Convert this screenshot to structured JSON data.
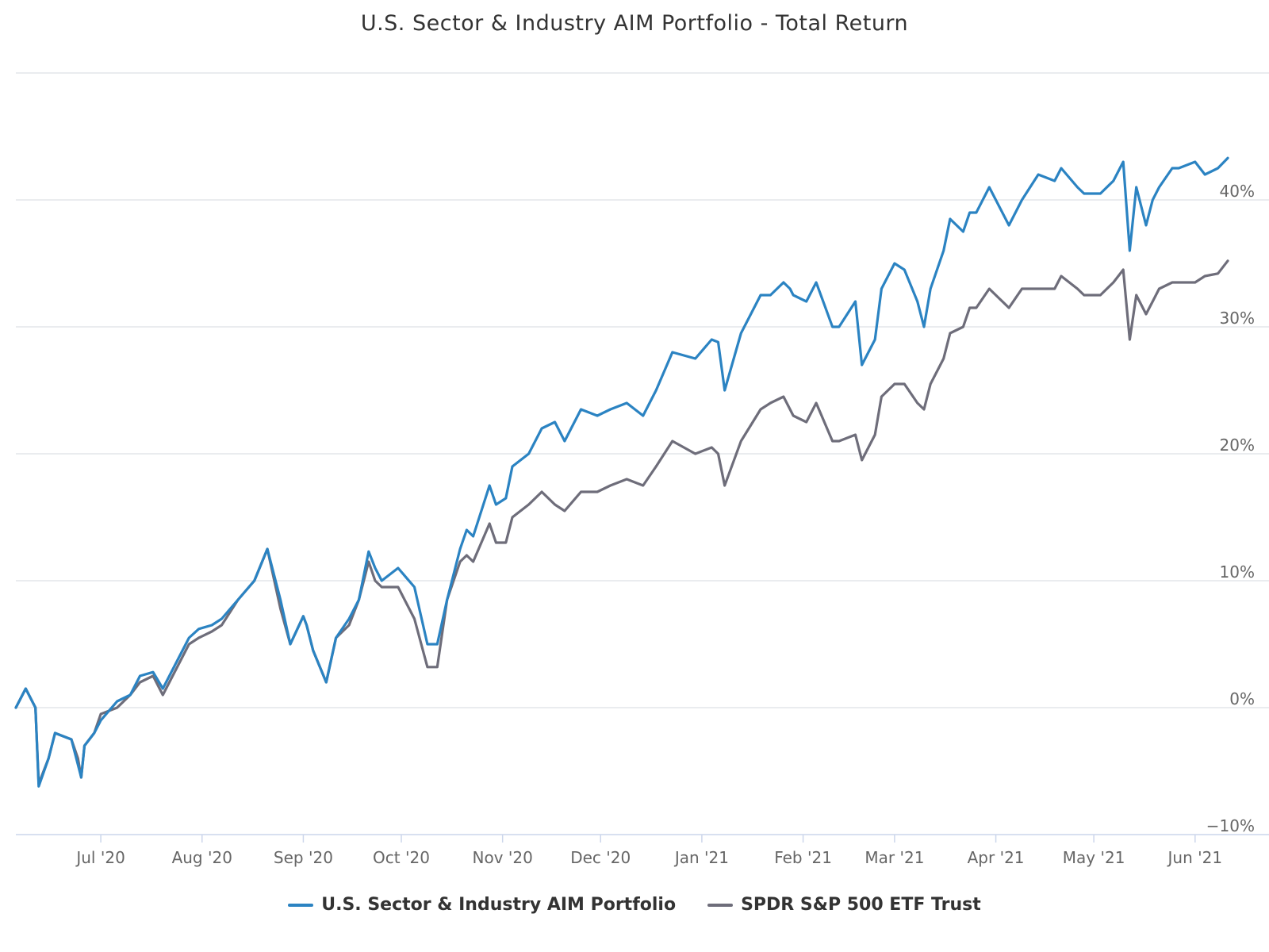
{
  "chart_data": {
    "type": "line",
    "title": "U.S. Sector & Industry AIM Portfolio - Total Return",
    "xlabel": "",
    "ylabel": "",
    "ylim": [
      -10,
      50
    ],
    "y_ticks": [
      "−10%",
      "0%",
      "10%",
      "20%",
      "30%",
      "40%"
    ],
    "y_tick_values": [
      -10,
      0,
      10,
      20,
      30,
      40
    ],
    "x_ticks": [
      "Jul '20",
      "Aug '20",
      "Sep '20",
      "Oct '20",
      "Nov '20",
      "Dec '20",
      "Jan '21",
      "Feb '21",
      "Mar '21",
      "Apr '21",
      "May '21",
      "Jun '21"
    ],
    "x_tick_dates": [
      "2020-07-01",
      "2020-08-01",
      "2020-09-01",
      "2020-10-01",
      "2020-11-01",
      "2020-12-01",
      "2021-01-01",
      "2021-02-01",
      "2021-03-01",
      "2021-04-01",
      "2021-05-01",
      "2021-06-01"
    ],
    "x_range": [
      "2020-06-05",
      "2021-06-11"
    ],
    "grid": true,
    "y_axis_side": "right",
    "legend_position": "bottom",
    "series": [
      {
        "name": "U.S. Sector & Industry AIM Portfolio",
        "color": "#2b83c2",
        "x": [
          "2020-06-05",
          "2020-06-08",
          "2020-06-11",
          "2020-06-12",
          "2020-06-15",
          "2020-06-17",
          "2020-06-19",
          "2020-06-22",
          "2020-06-24",
          "2020-06-25",
          "2020-06-26",
          "2020-06-29",
          "2020-07-01",
          "2020-07-06",
          "2020-07-10",
          "2020-07-13",
          "2020-07-17",
          "2020-07-20",
          "2020-07-24",
          "2020-07-28",
          "2020-07-31",
          "2020-08-04",
          "2020-08-07",
          "2020-08-12",
          "2020-08-17",
          "2020-08-21",
          "2020-08-25",
          "2020-08-28",
          "2020-09-01",
          "2020-09-02",
          "2020-09-04",
          "2020-09-08",
          "2020-09-11",
          "2020-09-15",
          "2020-09-18",
          "2020-09-21",
          "2020-09-23",
          "2020-09-25",
          "2020-09-30",
          "2020-10-05",
          "2020-10-09",
          "2020-10-12",
          "2020-10-15",
          "2020-10-19",
          "2020-10-21",
          "2020-10-23",
          "2020-10-28",
          "2020-10-30",
          "2020-11-02",
          "2020-11-04",
          "2020-11-09",
          "2020-11-13",
          "2020-11-17",
          "2020-11-20",
          "2020-11-25",
          "2020-11-30",
          "2020-12-04",
          "2020-12-09",
          "2020-12-14",
          "2020-12-18",
          "2020-12-23",
          "2020-12-30",
          "2021-01-04",
          "2021-01-06",
          "2021-01-08",
          "2021-01-13",
          "2021-01-19",
          "2021-01-22",
          "2021-01-26",
          "2021-01-28",
          "2021-01-29",
          "2021-02-02",
          "2021-02-05",
          "2021-02-10",
          "2021-02-12",
          "2021-02-17",
          "2021-02-19",
          "2021-02-23",
          "2021-02-25",
          "2021-03-01",
          "2021-03-04",
          "2021-03-08",
          "2021-03-10",
          "2021-03-12",
          "2021-03-16",
          "2021-03-18",
          "2021-03-22",
          "2021-03-24",
          "2021-03-26",
          "2021-03-30",
          "2021-04-05",
          "2021-04-09",
          "2021-04-14",
          "2021-04-19",
          "2021-04-21",
          "2021-04-26",
          "2021-04-28",
          "2021-05-03",
          "2021-05-07",
          "2021-05-10",
          "2021-05-12",
          "2021-05-14",
          "2021-05-17",
          "2021-05-19",
          "2021-05-21",
          "2021-05-25",
          "2021-05-27",
          "2021-06-01",
          "2021-06-04",
          "2021-06-08",
          "2021-06-11"
        ],
        "y": [
          0.0,
          1.5,
          0.0,
          -6.2,
          -4.0,
          -2.0,
          -2.2,
          -2.5,
          -4.5,
          -5.5,
          -3.0,
          -2.0,
          -1.0,
          0.5,
          1.0,
          2.5,
          2.8,
          1.5,
          3.5,
          5.5,
          6.2,
          6.5,
          7.0,
          8.5,
          10.0,
          12.5,
          8.5,
          5.0,
          7.2,
          6.5,
          4.5,
          2.0,
          5.5,
          7.0,
          8.5,
          12.3,
          11.0,
          10.0,
          11.0,
          9.5,
          5.0,
          5.0,
          8.5,
          12.5,
          14.0,
          13.5,
          17.5,
          16.0,
          16.5,
          19.0,
          20.0,
          22.0,
          22.5,
          21.0,
          23.5,
          23.0,
          23.5,
          24.0,
          23.0,
          25.0,
          28.0,
          27.5,
          29.0,
          28.8,
          25.0,
          29.5,
          32.5,
          32.5,
          33.5,
          33.0,
          32.5,
          32.0,
          33.5,
          30.0,
          30.0,
          32.0,
          27.0,
          29.0,
          33.0,
          35.0,
          34.5,
          32.0,
          30.0,
          33.0,
          36.0,
          38.5,
          37.5,
          39.0,
          39.0,
          41.0,
          38.0,
          40.0,
          42.0,
          41.5,
          42.5,
          41.0,
          40.5,
          40.5,
          41.5,
          43.0,
          36.0,
          41.0,
          38.0,
          40.0,
          41.0,
          42.5,
          42.5,
          43.0,
          42.0,
          42.5,
          43.3
        ]
      },
      {
        "name": "SPDR S&P 500 ETF Trust",
        "color": "#6e6d7a",
        "x": [
          "2020-06-05",
          "2020-06-08",
          "2020-06-11",
          "2020-06-12",
          "2020-06-15",
          "2020-06-17",
          "2020-06-19",
          "2020-06-22",
          "2020-06-24",
          "2020-06-25",
          "2020-06-26",
          "2020-06-29",
          "2020-07-01",
          "2020-07-06",
          "2020-07-10",
          "2020-07-13",
          "2020-07-17",
          "2020-07-20",
          "2020-07-24",
          "2020-07-28",
          "2020-07-31",
          "2020-08-04",
          "2020-08-07",
          "2020-08-12",
          "2020-08-17",
          "2020-08-21",
          "2020-08-25",
          "2020-08-28",
          "2020-09-01",
          "2020-09-02",
          "2020-09-04",
          "2020-09-08",
          "2020-09-11",
          "2020-09-15",
          "2020-09-18",
          "2020-09-21",
          "2020-09-23",
          "2020-09-25",
          "2020-09-30",
          "2020-10-05",
          "2020-10-09",
          "2020-10-12",
          "2020-10-15",
          "2020-10-19",
          "2020-10-21",
          "2020-10-23",
          "2020-10-28",
          "2020-10-30",
          "2020-11-02",
          "2020-11-04",
          "2020-11-09",
          "2020-11-13",
          "2020-11-17",
          "2020-11-20",
          "2020-11-25",
          "2020-11-30",
          "2020-12-04",
          "2020-12-09",
          "2020-12-14",
          "2020-12-18",
          "2020-12-23",
          "2020-12-30",
          "2021-01-04",
          "2021-01-06",
          "2021-01-08",
          "2021-01-13",
          "2021-01-19",
          "2021-01-22",
          "2021-01-26",
          "2021-01-28",
          "2021-01-29",
          "2021-02-02",
          "2021-02-05",
          "2021-02-10",
          "2021-02-12",
          "2021-02-17",
          "2021-02-19",
          "2021-02-23",
          "2021-02-25",
          "2021-03-01",
          "2021-03-04",
          "2021-03-08",
          "2021-03-10",
          "2021-03-12",
          "2021-03-16",
          "2021-03-18",
          "2021-03-22",
          "2021-03-24",
          "2021-03-26",
          "2021-03-30",
          "2021-04-05",
          "2021-04-09",
          "2021-04-14",
          "2021-04-19",
          "2021-04-21",
          "2021-04-26",
          "2021-04-28",
          "2021-05-03",
          "2021-05-07",
          "2021-05-10",
          "2021-05-12",
          "2021-05-14",
          "2021-05-17",
          "2021-05-19",
          "2021-05-21",
          "2021-05-25",
          "2021-05-27",
          "2021-06-01",
          "2021-06-04",
          "2021-06-08",
          "2021-06-11"
        ],
        "y": [
          0.0,
          1.5,
          0.0,
          -6.0,
          -4.0,
          -2.0,
          -2.2,
          -2.5,
          -4.0,
          -5.5,
          -3.0,
          -2.0,
          -0.5,
          0.0,
          1.0,
          2.0,
          2.5,
          1.0,
          3.0,
          5.0,
          5.5,
          6.0,
          6.5,
          8.5,
          10.0,
          12.5,
          7.8,
          5.0,
          7.2,
          6.5,
          4.5,
          2.0,
          5.5,
          6.5,
          8.5,
          11.5,
          10.0,
          9.5,
          9.5,
          7.0,
          3.2,
          3.2,
          8.5,
          11.5,
          12.0,
          11.5,
          14.5,
          13.0,
          13.0,
          15.0,
          16.0,
          17.0,
          16.0,
          15.5,
          17.0,
          17.0,
          17.5,
          18.0,
          17.5,
          19.0,
          21.0,
          20.0,
          20.5,
          20.0,
          17.5,
          21.0,
          23.5,
          24.0,
          24.5,
          23.5,
          23.0,
          22.5,
          24.0,
          21.0,
          21.0,
          21.5,
          19.5,
          21.5,
          24.5,
          25.5,
          25.5,
          24.0,
          23.5,
          25.5,
          27.5,
          29.5,
          30.0,
          31.5,
          31.5,
          33.0,
          31.5,
          33.0,
          33.0,
          33.0,
          34.0,
          33.0,
          32.5,
          32.5,
          33.5,
          34.5,
          29.0,
          32.5,
          31.0,
          32.0,
          33.0,
          33.5,
          33.5,
          33.5,
          34.0,
          34.2,
          35.2
        ]
      }
    ]
  }
}
